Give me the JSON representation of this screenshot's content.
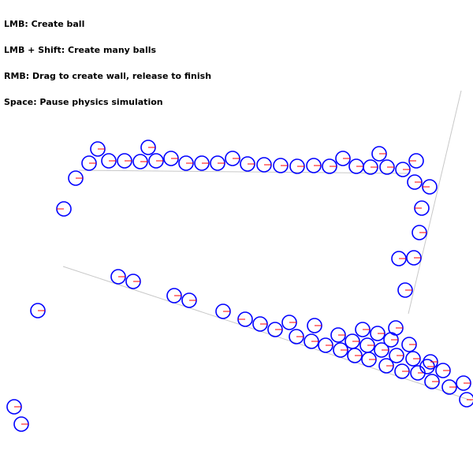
{
  "help": {
    "lines": [
      "LMB: Create ball",
      "LMB + Shift: Create many balls",
      "RMB: Drag to create wall, release to finish",
      "Space: Pause physics simulation"
    ]
  },
  "colors": {
    "background": "#ffffff",
    "wall": "#c8c8c8",
    "ball_outline": "#0000ff",
    "ball_direction": "#ff0000",
    "help_text": "#000000"
  },
  "icons": {
    "ball": "ball-icon",
    "wall": "wall-line"
  },
  "simulation": {
    "state": "running",
    "ball_count": 89,
    "wall_count": 4
  }
}
